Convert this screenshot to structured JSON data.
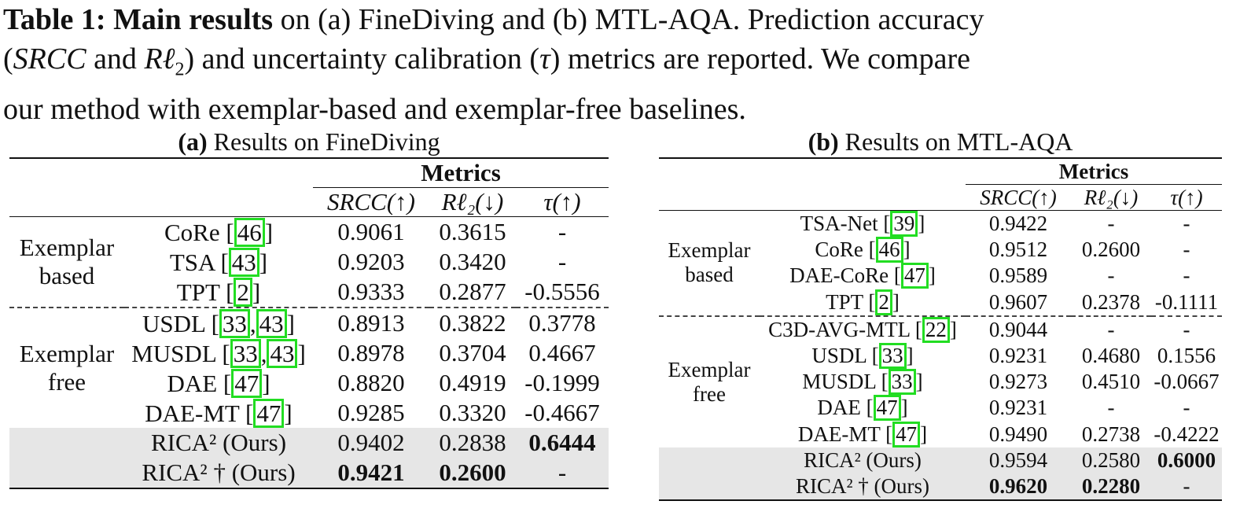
{
  "caption": {
    "lead": "Table 1: Main results",
    "line1_rest": " on (a) FineDiving and (b) MTL-AQA. Prediction accuracy",
    "line2a": "(",
    "line2_srcc": "SRCC",
    "line2b": " and ",
    "line2_rl": "Rℓ",
    "line2_rl_sub": "2",
    "line2c": ") and uncertainty calibration (",
    "line2_tau": "τ",
    "line2d": ") metrics are reported. We compare",
    "line3": "our method with exemplar-based and exemplar-free baselines."
  },
  "table_a": {
    "title_bold": "(a)",
    "title_rest": " Results on FineDiving",
    "metrics_header": "Metrics",
    "cols": [
      "SRCC(↑)",
      "Rℓ₂(↓)",
      "τ(↑)"
    ],
    "group_based_1": "Exemplar",
    "group_based_2": "based",
    "group_free_1": "Exemplar",
    "group_free_2": "free",
    "rows": [
      {
        "name": "CoRe ",
        "refs": [
          "46"
        ],
        "srcc": "0.9061",
        "rl2": "0.3615",
        "tau": "-"
      },
      {
        "name": "TSA ",
        "refs": [
          "43"
        ],
        "srcc": "0.9203",
        "rl2": "0.3420",
        "tau": "-"
      },
      {
        "name": "TPT ",
        "refs": [
          "2"
        ],
        "srcc": "0.9333",
        "rl2": "0.2877",
        "tau": "-0.5556"
      },
      {
        "name": "USDL ",
        "refs": [
          "33",
          "43"
        ],
        "srcc": "0.8913",
        "rl2": "0.3822",
        "tau": "0.3778"
      },
      {
        "name": "MUSDL ",
        "refs": [
          "33",
          "43"
        ],
        "srcc": "0.8978",
        "rl2": "0.3704",
        "tau": "0.4667"
      },
      {
        "name": "DAE ",
        "refs": [
          "47"
        ],
        "srcc": "0.8820",
        "rl2": "0.4919",
        "tau": "-0.1999"
      },
      {
        "name": "DAE-MT ",
        "refs": [
          "47"
        ],
        "srcc": "0.9285",
        "rl2": "0.3320",
        "tau": "-0.4667"
      },
      {
        "name": "RICA² (Ours)",
        "srcc": "0.9402",
        "rl2": "0.2838",
        "tau": "0.6444"
      },
      {
        "name": "RICA² † (Ours)",
        "srcc": "0.9421",
        "rl2": "0.2600",
        "tau": "-"
      }
    ]
  },
  "table_b": {
    "title_bold": "(b)",
    "title_rest": " Results on MTL-AQA",
    "metrics_header": "Metrics",
    "cols": [
      "SRCC(↑)",
      "Rℓ₂(↓)",
      "τ(↑)"
    ],
    "group_based_1": "Exemplar",
    "group_based_2": "based",
    "group_free_1": "Exemplar",
    "group_free_2": "free",
    "rows": [
      {
        "name": "TSA-Net ",
        "refs": [
          "39"
        ],
        "srcc": "0.9422",
        "rl2": "-",
        "tau": "-"
      },
      {
        "name": "CoRe ",
        "refs": [
          "46"
        ],
        "srcc": "0.9512",
        "rl2": "0.2600",
        "tau": "-"
      },
      {
        "name": "DAE-CoRe ",
        "refs": [
          "47"
        ],
        "srcc": "0.9589",
        "rl2": "-",
        "tau": "-"
      },
      {
        "name": "TPT ",
        "refs": [
          "2"
        ],
        "srcc": "0.9607",
        "rl2": "0.2378",
        "tau": "-0.1111"
      },
      {
        "name": "C3D-AVG-MTL ",
        "refs": [
          "22"
        ],
        "srcc": "0.9044",
        "rl2": "-",
        "tau": "-"
      },
      {
        "name": "USDL ",
        "refs": [
          "33"
        ],
        "srcc": "0.9231",
        "rl2": "0.4680",
        "tau": "0.1556"
      },
      {
        "name": "MUSDL ",
        "refs": [
          "33"
        ],
        "srcc": "0.9273",
        "rl2": "0.4510",
        "tau": "-0.0667"
      },
      {
        "name": "DAE ",
        "refs": [
          "47"
        ],
        "srcc": "0.9231",
        "rl2": "-",
        "tau": "-"
      },
      {
        "name": "DAE-MT ",
        "refs": [
          "47"
        ],
        "srcc": "0.9490",
        "rl2": "0.2738",
        "tau": "-0.4222"
      },
      {
        "name": "RICA² (Ours)",
        "srcc": "0.9594",
        "rl2": "0.2580",
        "tau": "0.6000"
      },
      {
        "name": "RICA² † (Ours)",
        "srcc": "0.9620",
        "rl2": "0.2280",
        "tau": "-"
      }
    ]
  }
}
